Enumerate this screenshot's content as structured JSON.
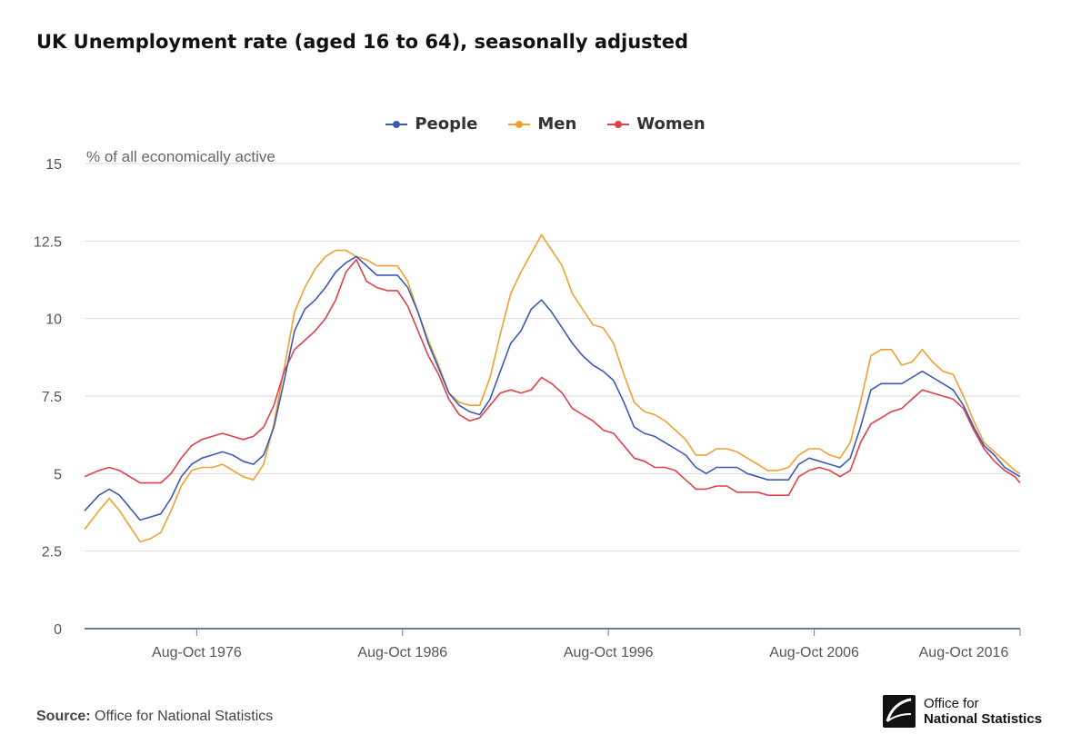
{
  "title": "UK Unemployment rate (aged 16 to 64), seasonally adjusted",
  "source_label": "Source:",
  "source_text": "Office for National Statistics",
  "logo": {
    "line1": "Office for",
    "line2": "National Statistics"
  },
  "legend": [
    {
      "name": "People",
      "color": "#3c5ab4"
    },
    {
      "name": "Men",
      "color": "#f0a030"
    },
    {
      "name": "Women",
      "color": "#e0404a"
    }
  ],
  "chart_data": {
    "type": "line",
    "title": "UK Unemployment rate (aged 16 to 64), seasonally adjusted",
    "ylabel": "% of all economically active",
    "xlabel": "",
    "ylim": [
      0,
      15
    ],
    "xlim": [
      1971.3,
      2016.75
    ],
    "yticks": [
      0,
      2.5,
      5,
      7.5,
      10,
      12.5,
      15
    ],
    "ytick_labels": [
      "0",
      "2.5",
      "5",
      "7.5",
      "10",
      "12.5",
      "15"
    ],
    "xticks": [
      1976.75,
      1986.75,
      1996.75,
      2006.75,
      2016.75
    ],
    "xtick_labels": [
      "Aug-Oct 1976",
      "Aug-Oct 1986",
      "Aug-Oct 1996",
      "Aug-Oct 2006",
      "Aug-Oct 2016"
    ],
    "grid": true,
    "legend_position": "top-center",
    "series": [
      {
        "name": "People",
        "color": "#3c5ab4",
        "x": [
          1971.3,
          1972.0,
          1972.5,
          1973.0,
          1973.5,
          1974.0,
          1974.5,
          1975.0,
          1975.5,
          1976.0,
          1976.5,
          1977.0,
          1977.5,
          1978.0,
          1978.5,
          1979.0,
          1979.5,
          1980.0,
          1980.5,
          1981.0,
          1981.5,
          1982.0,
          1982.5,
          1983.0,
          1983.5,
          1984.0,
          1984.5,
          1985.0,
          1985.5,
          1986.0,
          1986.5,
          1987.0,
          1987.5,
          1988.0,
          1988.5,
          1989.0,
          1989.5,
          1990.0,
          1990.5,
          1991.0,
          1991.5,
          1992.0,
          1992.5,
          1993.0,
          1993.5,
          1994.0,
          1994.5,
          1995.0,
          1995.5,
          1996.0,
          1996.5,
          1997.0,
          1997.5,
          1998.0,
          1998.5,
          1999.0,
          1999.5,
          2000.0,
          2000.5,
          2001.0,
          2001.5,
          2002.0,
          2002.5,
          2003.0,
          2003.5,
          2004.0,
          2004.5,
          2005.0,
          2005.5,
          2006.0,
          2006.5,
          2007.0,
          2007.5,
          2008.0,
          2008.5,
          2009.0,
          2009.5,
          2010.0,
          2010.5,
          2011.0,
          2011.5,
          2012.0,
          2012.5,
          2013.0,
          2013.5,
          2014.0,
          2014.5,
          2015.0,
          2015.5,
          2016.0,
          2016.5,
          2016.75
        ],
        "y": [
          3.8,
          4.3,
          4.5,
          4.3,
          3.9,
          3.5,
          3.6,
          3.7,
          4.2,
          4.9,
          5.3,
          5.5,
          5.6,
          5.7,
          5.6,
          5.4,
          5.3,
          5.6,
          6.5,
          8.0,
          9.6,
          10.3,
          10.6,
          11.0,
          11.5,
          11.8,
          12.0,
          11.7,
          11.4,
          11.4,
          11.4,
          11.0,
          10.2,
          9.2,
          8.4,
          7.6,
          7.2,
          7.0,
          6.9,
          7.4,
          8.3,
          9.2,
          9.6,
          10.3,
          10.6,
          10.2,
          9.7,
          9.2,
          8.8,
          8.5,
          8.3,
          8.0,
          7.3,
          6.5,
          6.3,
          6.2,
          6.0,
          5.8,
          5.6,
          5.2,
          5.0,
          5.2,
          5.2,
          5.2,
          5.0,
          4.9,
          4.8,
          4.8,
          4.8,
          5.3,
          5.5,
          5.4,
          5.3,
          5.2,
          5.5,
          6.5,
          7.7,
          7.9,
          7.9,
          7.9,
          8.1,
          8.3,
          8.1,
          7.9,
          7.7,
          7.2,
          6.5,
          5.9,
          5.6,
          5.2,
          5.0,
          4.9
        ]
      },
      {
        "name": "Men",
        "color": "#f0a030",
        "x": [
          1971.3,
          1972.0,
          1972.5,
          1973.0,
          1973.5,
          1974.0,
          1974.5,
          1975.0,
          1975.5,
          1976.0,
          1976.5,
          1977.0,
          1977.5,
          1978.0,
          1978.5,
          1979.0,
          1979.5,
          1980.0,
          1980.5,
          1981.0,
          1981.5,
          1982.0,
          1982.5,
          1983.0,
          1983.5,
          1984.0,
          1984.5,
          1985.0,
          1985.5,
          1986.0,
          1986.5,
          1987.0,
          1987.5,
          1988.0,
          1988.5,
          1989.0,
          1989.5,
          1990.0,
          1990.5,
          1991.0,
          1991.5,
          1992.0,
          1992.5,
          1993.0,
          1993.5,
          1994.0,
          1994.5,
          1995.0,
          1995.5,
          1996.0,
          1996.5,
          1997.0,
          1997.5,
          1998.0,
          1998.5,
          1999.0,
          1999.5,
          2000.0,
          2000.5,
          2001.0,
          2001.5,
          2002.0,
          2002.5,
          2003.0,
          2003.5,
          2004.0,
          2004.5,
          2005.0,
          2005.5,
          2006.0,
          2006.5,
          2007.0,
          2007.5,
          2008.0,
          2008.5,
          2009.0,
          2009.5,
          2010.0,
          2010.5,
          2011.0,
          2011.5,
          2012.0,
          2012.5,
          2013.0,
          2013.5,
          2014.0,
          2014.5,
          2015.0,
          2015.5,
          2016.0,
          2016.5,
          2016.75
        ],
        "y": [
          3.2,
          3.8,
          4.2,
          3.8,
          3.3,
          2.8,
          2.9,
          3.1,
          3.8,
          4.6,
          5.1,
          5.2,
          5.2,
          5.3,
          5.1,
          4.9,
          4.8,
          5.3,
          6.6,
          8.4,
          10.2,
          11.0,
          11.6,
          12.0,
          12.2,
          12.2,
          12.0,
          11.9,
          11.7,
          11.7,
          11.7,
          11.2,
          10.2,
          9.3,
          8.5,
          7.6,
          7.3,
          7.2,
          7.2,
          8.1,
          9.5,
          10.8,
          11.5,
          12.1,
          12.7,
          12.2,
          11.7,
          10.8,
          10.3,
          9.8,
          9.7,
          9.2,
          8.2,
          7.3,
          7.0,
          6.9,
          6.7,
          6.4,
          6.1,
          5.6,
          5.6,
          5.8,
          5.8,
          5.7,
          5.5,
          5.3,
          5.1,
          5.1,
          5.2,
          5.6,
          5.8,
          5.8,
          5.6,
          5.5,
          6.0,
          7.3,
          8.8,
          9.0,
          9.0,
          8.5,
          8.6,
          9.0,
          8.6,
          8.3,
          8.2,
          7.5,
          6.7,
          6.0,
          5.7,
          5.4,
          5.1,
          5.0
        ]
      },
      {
        "name": "Women",
        "color": "#e0404a",
        "x": [
          1971.3,
          1972.0,
          1972.5,
          1973.0,
          1973.5,
          1974.0,
          1974.5,
          1975.0,
          1975.5,
          1976.0,
          1976.5,
          1977.0,
          1977.5,
          1978.0,
          1978.5,
          1979.0,
          1979.5,
          1980.0,
          1980.5,
          1981.0,
          1981.5,
          1982.0,
          1982.5,
          1983.0,
          1983.5,
          1984.0,
          1984.5,
          1985.0,
          1985.5,
          1986.0,
          1986.5,
          1987.0,
          1987.5,
          1988.0,
          1988.5,
          1989.0,
          1989.5,
          1990.0,
          1990.5,
          1991.0,
          1991.5,
          1992.0,
          1992.5,
          1993.0,
          1993.5,
          1994.0,
          1994.5,
          1995.0,
          1995.5,
          1996.0,
          1996.5,
          1997.0,
          1997.5,
          1998.0,
          1998.5,
          1999.0,
          1999.5,
          2000.0,
          2000.5,
          2001.0,
          2001.5,
          2002.0,
          2002.5,
          2003.0,
          2003.5,
          2004.0,
          2004.5,
          2005.0,
          2005.5,
          2006.0,
          2006.5,
          2007.0,
          2007.5,
          2008.0,
          2008.5,
          2009.0,
          2009.5,
          2010.0,
          2010.5,
          2011.0,
          2011.5,
          2012.0,
          2012.5,
          2013.0,
          2013.5,
          2014.0,
          2014.5,
          2015.0,
          2015.5,
          2016.0,
          2016.5,
          2016.75
        ],
        "y": [
          4.9,
          5.1,
          5.2,
          5.1,
          4.9,
          4.7,
          4.7,
          4.7,
          5.0,
          5.5,
          5.9,
          6.1,
          6.2,
          6.3,
          6.2,
          6.1,
          6.2,
          6.5,
          7.2,
          8.3,
          9.0,
          9.3,
          9.6,
          10.0,
          10.6,
          11.5,
          11.9,
          11.2,
          11.0,
          10.9,
          10.9,
          10.4,
          9.6,
          8.8,
          8.2,
          7.4,
          6.9,
          6.7,
          6.8,
          7.2,
          7.6,
          7.7,
          7.6,
          7.7,
          8.1,
          7.9,
          7.6,
          7.1,
          6.9,
          6.7,
          6.4,
          6.3,
          5.9,
          5.5,
          5.4,
          5.2,
          5.2,
          5.1,
          4.8,
          4.5,
          4.5,
          4.6,
          4.6,
          4.4,
          4.4,
          4.4,
          4.3,
          4.3,
          4.3,
          4.9,
          5.1,
          5.2,
          5.1,
          4.9,
          5.1,
          6.0,
          6.6,
          6.8,
          7.0,
          7.1,
          7.4,
          7.7,
          7.6,
          7.5,
          7.4,
          7.1,
          6.4,
          5.8,
          5.4,
          5.1,
          4.9,
          4.7
        ]
      }
    ]
  }
}
